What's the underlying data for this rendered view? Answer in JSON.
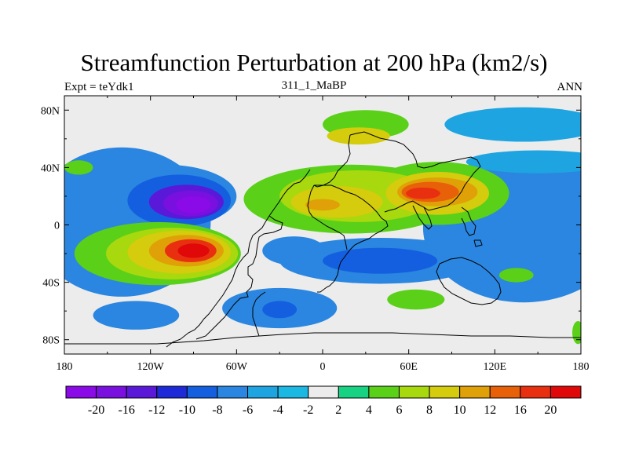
{
  "title": "Streamfunction Perturbation at 200 hPa (km2/s)",
  "left_string": "Expt = teYdk1",
  "center_string": "311_1_MaBP",
  "right_string": "ANN",
  "x_ticks": [
    "180",
    "120W",
    "60W",
    "0",
    "60E",
    "120E",
    "180"
  ],
  "y_ticks": [
    "80N",
    "40N",
    "0",
    "40S",
    "80S"
  ],
  "colorbar": {
    "labels": [
      "-20",
      "-16",
      "-12",
      "-10",
      "-8",
      "-6",
      "-4",
      "-2",
      "2",
      "4",
      "6",
      "8",
      "10",
      "12",
      "16",
      "20"
    ],
    "colors": [
      "#8b0ae8",
      "#7a10e0",
      "#5a18d8",
      "#1e2ad8",
      "#145ee0",
      "#2a86e0",
      "#1ea4e0",
      "#1cb8e4",
      "#ececec",
      "#16d282",
      "#5ad018",
      "#a8d80e",
      "#d4cc0c",
      "#e0a008",
      "#e86008",
      "#e83010",
      "#e00808"
    ]
  },
  "blobs": [
    {
      "level": "-6",
      "lon": -140,
      "lat": 2,
      "rlon": 62,
      "rlat": 52
    },
    {
      "level": "-6",
      "lon": 140,
      "lat": -2,
      "rlon": 70,
      "rlat": 52
    },
    {
      "level": "-4",
      "lon": 140,
      "lat": 70,
      "rlon": 55,
      "rlat": 12
    },
    {
      "level": "-4",
      "lon": 150,
      "lat": 44,
      "rlon": 50,
      "rlat": 8
    },
    {
      "level": "-6",
      "lon": -110,
      "lat": 20,
      "rlon": 50,
      "rlat": 22
    },
    {
      "level": "-8",
      "lon": -100,
      "lat": 17,
      "rlon": 36,
      "rlat": 18
    },
    {
      "level": "-12",
      "lon": -95,
      "lat": 16,
      "rlon": 26,
      "rlat": 12
    },
    {
      "level": "-16",
      "lon": -92,
      "lat": 15,
      "rlon": 19,
      "rlat": 9
    },
    {
      "level": "-20",
      "lon": -90,
      "lat": 14,
      "rlon": 12,
      "rlat": 6
    },
    {
      "level": "4",
      "lon": -115,
      "lat": -20,
      "rlon": 58,
      "rlat": 22
    },
    {
      "level": "6",
      "lon": -105,
      "lat": -20,
      "rlon": 46,
      "rlat": 18
    },
    {
      "level": "8",
      "lon": -100,
      "lat": -19,
      "rlon": 36,
      "rlat": 15
    },
    {
      "level": "10",
      "lon": -95,
      "lat": -18,
      "rlon": 26,
      "rlat": 11
    },
    {
      "level": "16",
      "lon": -92,
      "lat": -18,
      "rlon": 18,
      "rlat": 8
    },
    {
      "level": "20",
      "lon": -90,
      "lat": -18,
      "rlon": 11,
      "rlat": 5
    },
    {
      "level": "-6",
      "lon": -20,
      "lat": -18,
      "rlon": 22,
      "rlat": 10
    },
    {
      "level": "-6",
      "lon": 40,
      "lat": -25,
      "rlon": 70,
      "rlat": 16
    },
    {
      "level": "-8",
      "lon": 40,
      "lat": -25,
      "rlon": 40,
      "rlat": 9
    },
    {
      "level": "-6",
      "lon": -30,
      "lat": -58,
      "rlon": 40,
      "rlat": 14
    },
    {
      "level": "-8",
      "lon": -30,
      "lat": -59,
      "rlon": 12,
      "rlat": 6
    },
    {
      "level": "-6",
      "lon": -130,
      "lat": -63,
      "rlon": 30,
      "rlat": 10
    },
    {
      "level": "-4",
      "lon": 30,
      "lat": 18,
      "rlon": 22,
      "rlat": 6
    },
    {
      "level": "4",
      "lon": 20,
      "lat": 18,
      "rlon": 75,
      "rlat": 24
    },
    {
      "level": "4",
      "lon": 80,
      "lat": 22,
      "rlon": 50,
      "rlat": 22
    },
    {
      "level": "4",
      "lon": 30,
      "lat": 70,
      "rlon": 30,
      "rlat": 10
    },
    {
      "level": "8",
      "lon": 25,
      "lat": 62,
      "rlon": 22,
      "rlat": 6
    },
    {
      "level": "6",
      "lon": 25,
      "lat": 20,
      "rlon": 55,
      "rlat": 18
    },
    {
      "level": "8",
      "lon": 10,
      "lat": 16,
      "rlon": 32,
      "rlat": 11
    },
    {
      "level": "10",
      "lon": 0,
      "lat": 14,
      "rlon": 12,
      "rlat": 4
    },
    {
      "level": "8",
      "lon": 80,
      "lat": 22,
      "rlon": 36,
      "rlat": 15
    },
    {
      "level": "10",
      "lon": 80,
      "lat": 23,
      "rlon": 28,
      "rlat": 10
    },
    {
      "level": "12",
      "lon": 75,
      "lat": 23,
      "rlon": 20,
      "rlat": 7
    },
    {
      "level": "16",
      "lon": 70,
      "lat": 22,
      "rlon": 12,
      "rlat": 4
    },
    {
      "level": "4",
      "lon": 65,
      "lat": -52,
      "rlon": 20,
      "rlat": 7
    },
    {
      "level": "4",
      "lon": 135,
      "lat": -35,
      "rlon": 12,
      "rlat": 5
    },
    {
      "level": "4",
      "lon": -170,
      "lat": 40,
      "rlon": 10,
      "rlat": 5
    },
    {
      "level": "4",
      "lon": 178,
      "lat": -75,
      "rlon": 4,
      "rlat": 8
    }
  ]
}
